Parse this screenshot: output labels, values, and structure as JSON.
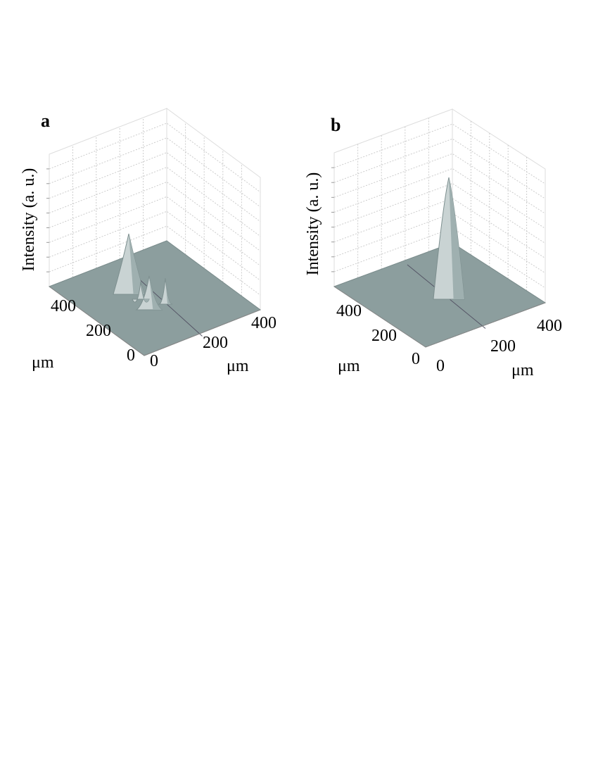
{
  "panels": [
    {
      "label": "a",
      "z_label": "Intensity (a. u.)",
      "left_ticks": [
        "400",
        "200",
        "0"
      ],
      "left_unit": "μm",
      "right_ticks": [
        "0",
        "200",
        "400"
      ],
      "right_unit": "μm"
    },
    {
      "label": "b",
      "z_label": "Intensity (a. u.)",
      "left_ticks": [
        "400",
        "200",
        "0"
      ],
      "left_unit": "μm",
      "right_ticks": [
        "0",
        "200",
        "400"
      ],
      "right_unit": "μm"
    }
  ]
}
